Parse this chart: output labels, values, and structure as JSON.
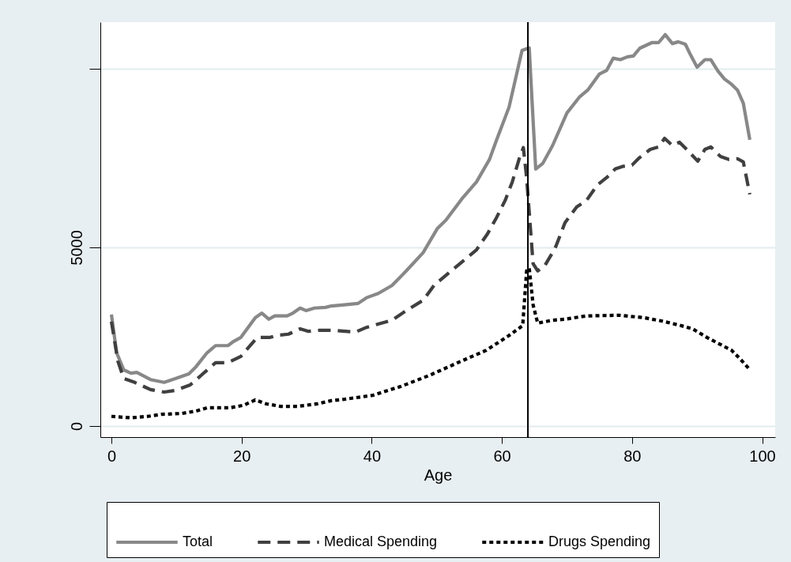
{
  "chart_data": {
    "type": "line",
    "xlabel": "Age",
    "xlim": [
      -1.7,
      102
    ],
    "xticks": [
      0,
      20,
      40,
      60,
      80,
      100
    ],
    "ylim": [
      -310,
      11300
    ],
    "yticks": [
      0,
      5000,
      {
        "value": 10000,
        "label": null
      }
    ],
    "grid": "y",
    "legend": "bottom",
    "marker": "none",
    "ref_lines": [
      {
        "axis": "x",
        "value": 64,
        "color": "#000000",
        "line_style": "solid"
      }
    ],
    "series": [
      {
        "name": "Total",
        "color": "#888888",
        "line_style": "solid",
        "x": [
          0,
          0.8,
          1.9,
          3,
          3.9,
          6,
          8.1,
          9.9,
          11.9,
          13,
          14.7,
          16,
          17.9,
          18.8,
          19.9,
          22.1,
          23.1,
          24.2,
          25.1,
          27,
          27.9,
          29,
          29.9,
          31.2,
          32.9,
          33.8,
          35.8,
          37.9,
          39.2,
          41,
          43.1,
          45.3,
          47.9,
          50.1,
          51.4,
          54,
          56.1,
          58.1,
          59.2,
          61.1,
          63.1,
          64.2,
          65.2,
          66.3,
          67.8,
          70,
          71.9,
          73.2,
          75,
          76.1,
          77.1,
          78.2,
          79.3,
          80.2,
          81.2,
          83.1,
          84.1,
          85.1,
          86.2,
          87.1,
          88.2,
          89,
          90,
          91.2,
          92.1,
          93.2,
          94.2,
          95.3,
          96.2,
          97.1,
          98.1
        ],
        "values": [
          3120,
          2050,
          1570,
          1480,
          1500,
          1300,
          1220,
          1330,
          1460,
          1660,
          2050,
          2250,
          2250,
          2370,
          2480,
          3030,
          3160,
          2990,
          3080,
          3080,
          3160,
          3300,
          3230,
          3300,
          3320,
          3360,
          3390,
          3430,
          3590,
          3710,
          3930,
          4340,
          4850,
          5530,
          5760,
          6390,
          6830,
          7460,
          8010,
          8920,
          10510,
          10580,
          7190,
          7350,
          7850,
          8760,
          9200,
          9400,
          9850,
          9950,
          10290,
          10250,
          10330,
          10350,
          10570,
          10730,
          10730,
          10950,
          10700,
          10750,
          10680,
          10380,
          10040,
          10250,
          10250,
          9930,
          9710,
          9560,
          9400,
          9030,
          8010
        ]
      },
      {
        "name": "Medical Spending",
        "color": "#404040",
        "line_style": "dashed",
        "x": [
          0,
          1,
          1.9,
          3.6,
          6,
          8.1,
          9.9,
          12.1,
          13.8,
          16,
          17.9,
          19.9,
          22.4,
          24.4,
          25.5,
          27.2,
          29,
          30.3,
          32,
          33.8,
          37.5,
          39.2,
          43.1,
          45.3,
          47.9,
          49.6,
          52.2,
          56.1,
          57.8,
          59.2,
          60.5,
          61.6,
          62.7,
          63.3,
          63.8,
          64.8,
          65.5,
          66.6,
          68.2,
          69.7,
          71.5,
          73,
          74.7,
          76.1,
          77.4,
          78.5,
          80,
          81.1,
          82.8,
          84.1,
          85,
          86.2,
          87.3,
          88.4,
          90.1,
          91.2,
          92.1,
          93.6,
          94.9,
          96.2,
          97.1,
          98.1
        ],
        "values": [
          2920,
          1810,
          1330,
          1220,
          1020,
          950,
          1000,
          1150,
          1420,
          1770,
          1770,
          1950,
          2480,
          2480,
          2540,
          2570,
          2720,
          2650,
          2680,
          2680,
          2630,
          2760,
          2960,
          3230,
          3520,
          3940,
          4340,
          4930,
          5380,
          5840,
          6310,
          6830,
          7500,
          7790,
          6950,
          4540,
          4340,
          4490,
          4980,
          5690,
          6130,
          6310,
          6750,
          6950,
          7190,
          7260,
          7300,
          7500,
          7740,
          7810,
          8050,
          7850,
          7940,
          7740,
          7410,
          7740,
          7810,
          7540,
          7460,
          7480,
          7390,
          6480
        ]
      },
      {
        "name": "Drugs Spending",
        "color": "#000000",
        "line_style": "dotted",
        "x": [
          0,
          3,
          5.6,
          7.8,
          10.8,
          13,
          14.7,
          18.2,
          20.3,
          22.1,
          23.8,
          26,
          28.6,
          31.6,
          33.8,
          35.8,
          40.2,
          44.5,
          48.9,
          53.2,
          57.6,
          61,
          63.2,
          63.8,
          64.2,
          64.8,
          65.5,
          67.8,
          69.7,
          73,
          78,
          81.9,
          84.5,
          87.1,
          89.3,
          91.5,
          93.6,
          95.3,
          96.6,
          97.9
        ],
        "values": [
          270,
          230,
          270,
          330,
          350,
          420,
          510,
          510,
          580,
          730,
          620,
          550,
          550,
          620,
          710,
          750,
          860,
          1110,
          1420,
          1770,
          2120,
          2520,
          2810,
          4340,
          4420,
          3390,
          2880,
          2960,
          2990,
          3080,
          3100,
          3030,
          2940,
          2830,
          2720,
          2480,
          2280,
          2120,
          1880,
          1620
        ]
      }
    ]
  }
}
